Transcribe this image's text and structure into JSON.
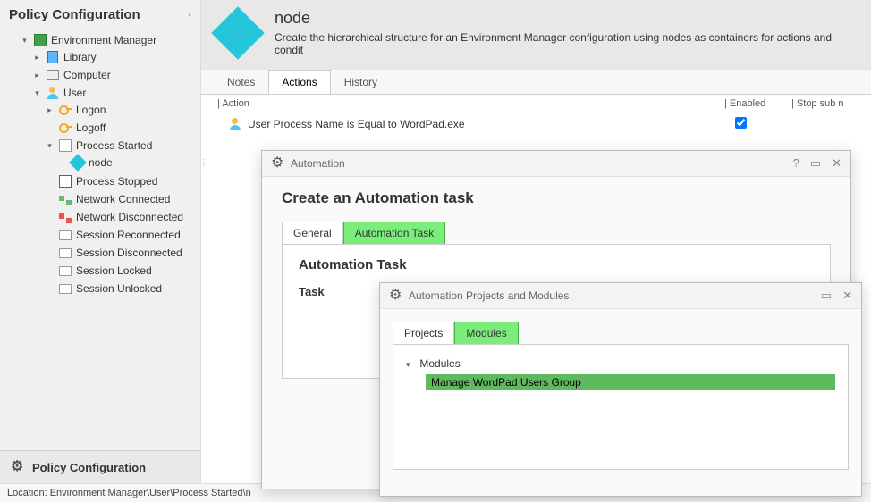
{
  "sidebar": {
    "title": "Policy Configuration",
    "root": "Environment Manager",
    "nodes": {
      "library": "Library",
      "computer": "Computer",
      "user": "User",
      "logon": "Logon",
      "logoff": "Logoff",
      "process_started": "Process Started",
      "node_item": "node",
      "process_stopped": "Process Stopped",
      "net_connected": "Network Connected",
      "net_disconnected": "Network Disconnected",
      "sess_reconnected": "Session Reconnected",
      "sess_disconnected": "Session Disconnected",
      "sess_locked": "Session Locked",
      "sess_unlocked": "Session Unlocked"
    },
    "footer": "Policy Configuration"
  },
  "header": {
    "title": "node",
    "description": "Create the hierarchical structure for an Environment Manager configuration using nodes as containers for actions and condit"
  },
  "tabs": {
    "notes": "Notes",
    "actions": "Actions",
    "history": "History"
  },
  "columns": {
    "action": "Action",
    "enabled": "Enabled",
    "stop": "Stop sub n"
  },
  "action_row": {
    "text": "User Process Name is Equal to WordPad.exe",
    "enabled": true
  },
  "modal1": {
    "title": "Automation",
    "heading": "Create an Automation task",
    "tab_general": "General",
    "tab_task": "Automation Task",
    "section_title": "Automation Task",
    "task_label": "Task"
  },
  "modal2": {
    "title": "Automation Projects and Modules",
    "tab_projects": "Projects",
    "tab_modules": "Modules",
    "tree_root": "Modules",
    "tree_item": "Manage WordPad Users Group"
  },
  "status_bar": "Location: Environment Manager\\User\\Process Started\\n",
  "colors": {
    "highlight_green": "#7bed7b",
    "selected_green": "#5fba5f",
    "diamond": "#26c6da"
  }
}
